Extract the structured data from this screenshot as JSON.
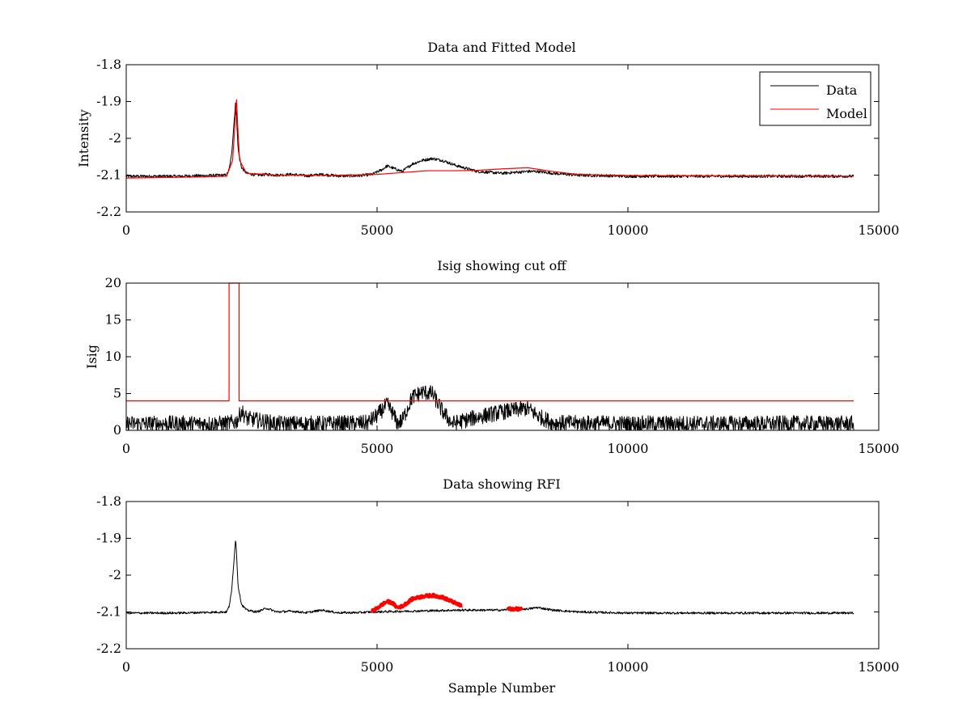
{
  "figure": {
    "background": "#ffffff",
    "series_colors": {
      "data": "#000000",
      "model": "#ff0000",
      "rfi": "#ff0000"
    }
  },
  "chart_data": [
    {
      "type": "line",
      "title": "Data and Fitted Model",
      "xlabel": "",
      "ylabel": "Intensity",
      "xlim": [
        0,
        15000
      ],
      "ylim": [
        -2.2,
        -1.8
      ],
      "xticks": [
        0,
        5000,
        10000,
        15000
      ],
      "xtick_labels": [
        "0",
        "5000",
        "10000",
        "15000"
      ],
      "yticks": [
        -2.2,
        -2.1,
        -2.0,
        -1.9,
        -1.8
      ],
      "ytick_labels": [
        "-2.2",
        "-2.1",
        "-2",
        "-1.9",
        "-1.8"
      ],
      "grid": false,
      "legend": {
        "placement": "top-right",
        "entries": [
          "Data",
          "Model"
        ]
      },
      "series": [
        {
          "name": "Data",
          "color": "#000000",
          "noise": 0.004,
          "x": [
            0,
            1000,
            2000,
            2050,
            2100,
            2150,
            2180,
            2200,
            2230,
            2300,
            2400,
            2600,
            2800,
            3000,
            3300,
            3600,
            3900,
            4200,
            4600,
            4900,
            5100,
            5200,
            5300,
            5400,
            5500,
            5700,
            5900,
            6100,
            6300,
            6600,
            7000,
            7500,
            8000,
            8200,
            8500,
            9000,
            10000,
            11000,
            12000,
            13000,
            14000,
            14500
          ],
          "y": [
            -2.103,
            -2.103,
            -2.1,
            -2.085,
            -2.045,
            -1.955,
            -1.9,
            -1.945,
            -2.03,
            -2.08,
            -2.095,
            -2.1,
            -2.098,
            -2.1,
            -2.098,
            -2.102,
            -2.098,
            -2.102,
            -2.102,
            -2.098,
            -2.085,
            -2.075,
            -2.08,
            -2.085,
            -2.09,
            -2.07,
            -2.06,
            -2.055,
            -2.06,
            -2.075,
            -2.09,
            -2.095,
            -2.09,
            -2.09,
            -2.095,
            -2.1,
            -2.103,
            -2.103,
            -2.103,
            -2.103,
            -2.103,
            -2.103
          ]
        },
        {
          "name": "Model",
          "color": "#ff0000",
          "noise": 0,
          "x": [
            0,
            1500,
            2000,
            2080,
            2120,
            2150,
            2175,
            2200,
            2220,
            2260,
            2400,
            3000,
            4000,
            5000,
            5500,
            6000,
            6500,
            7000,
            7500,
            8000,
            8500,
            9000,
            10000,
            12000,
            14500
          ],
          "y": [
            -2.108,
            -2.105,
            -2.103,
            -2.075,
            -2.06,
            -2.0,
            -1.935,
            -1.895,
            -1.96,
            -2.06,
            -2.095,
            -2.1,
            -2.101,
            -2.098,
            -2.093,
            -2.088,
            -2.088,
            -2.087,
            -2.083,
            -2.08,
            -2.09,
            -2.098,
            -2.101,
            -2.102,
            -2.103
          ]
        }
      ]
    },
    {
      "type": "line",
      "title": "Isig showing cut off",
      "xlabel": "",
      "ylabel": "Isig",
      "xlim": [
        0,
        15000
      ],
      "ylim": [
        0,
        20
      ],
      "xticks": [
        0,
        5000,
        10000,
        15000
      ],
      "xtick_labels": [
        "0",
        "5000",
        "10000",
        "15000"
      ],
      "yticks": [
        0,
        5,
        10,
        15,
        20
      ],
      "ytick_labels": [
        "0",
        "5",
        "10",
        "15",
        "20"
      ],
      "grid": false,
      "series": [
        {
          "name": "Isig",
          "color": "#000000",
          "noise": 1.1,
          "x": [
            0,
            2000,
            2200,
            2300,
            2400,
            3000,
            4000,
            4800,
            5000,
            5200,
            5300,
            5400,
            5500,
            5700,
            5900,
            6100,
            6300,
            6500,
            7000,
            7500,
            8000,
            8200,
            8500,
            10000,
            12000,
            14500
          ],
          "y": [
            0.9,
            0.9,
            1.2,
            2.6,
            1.6,
            0.9,
            0.9,
            1.0,
            2.0,
            3.5,
            2.5,
            1.0,
            1.3,
            4.5,
            5.2,
            5.0,
            2.6,
            0.9,
            1.8,
            2.5,
            3.0,
            2.0,
            1.0,
            0.9,
            0.9,
            0.9
          ]
        },
        {
          "name": "Cut off",
          "color": "#ff0000",
          "noise": 0,
          "x": [
            0,
            2050,
            2050,
            2250,
            2250,
            14500
          ],
          "y": [
            4,
            4,
            20,
            20,
            4,
            4
          ]
        }
      ]
    },
    {
      "type": "line",
      "title": "Data showing RFI",
      "xlabel": "Sample Number",
      "ylabel": "",
      "xlim": [
        0,
        15000
      ],
      "ylim": [
        -2.2,
        -1.8
      ],
      "xticks": [
        0,
        5000,
        10000,
        15000
      ],
      "xtick_labels": [
        "0",
        "5000",
        "10000",
        "15000"
      ],
      "yticks": [
        -2.2,
        -2.1,
        -2.0,
        -1.9,
        -1.8
      ],
      "ytick_labels": [
        "-2.2",
        "-2.1",
        "-2",
        "-1.9",
        "-1.8"
      ],
      "grid": false,
      "series": [
        {
          "name": "Data",
          "color": "#000000",
          "noise": 0.003,
          "x": [
            0,
            1000,
            2000,
            2050,
            2100,
            2150,
            2180,
            2200,
            2230,
            2300,
            2400,
            2600,
            2800,
            3000,
            3300,
            3600,
            3900,
            4200,
            4600,
            4900,
            6700,
            7000,
            7500,
            7700,
            8000,
            8200,
            8500,
            9000,
            10000,
            12000,
            14500
          ],
          "y": [
            -2.103,
            -2.103,
            -2.1,
            -2.085,
            -2.045,
            -1.955,
            -1.9,
            -1.945,
            -2.03,
            -2.08,
            -2.095,
            -2.1,
            -2.09,
            -2.1,
            -2.098,
            -2.102,
            -2.095,
            -2.102,
            -2.102,
            -2.1,
            -2.095,
            -2.095,
            -2.095,
            -2.092,
            -2.092,
            -2.088,
            -2.095,
            -2.1,
            -2.103,
            -2.103,
            -2.103
          ]
        },
        {
          "name": "RFI",
          "color": "#ff0000",
          "noise": 0.004,
          "x": [
            4900,
            5000,
            5100,
            5200,
            5300,
            5400,
            5500,
            5700,
            5900,
            6100,
            6300,
            6500,
            6700
          ],
          "y": [
            -2.098,
            -2.09,
            -2.08,
            -2.072,
            -2.075,
            -2.088,
            -2.085,
            -2.065,
            -2.058,
            -2.055,
            -2.06,
            -2.072,
            -2.085
          ]
        },
        {
          "name": "RFI",
          "color": "#ff0000",
          "noise": 0.004,
          "x": [
            7600,
            7900
          ],
          "y": [
            -2.092,
            -2.092
          ]
        }
      ]
    }
  ]
}
